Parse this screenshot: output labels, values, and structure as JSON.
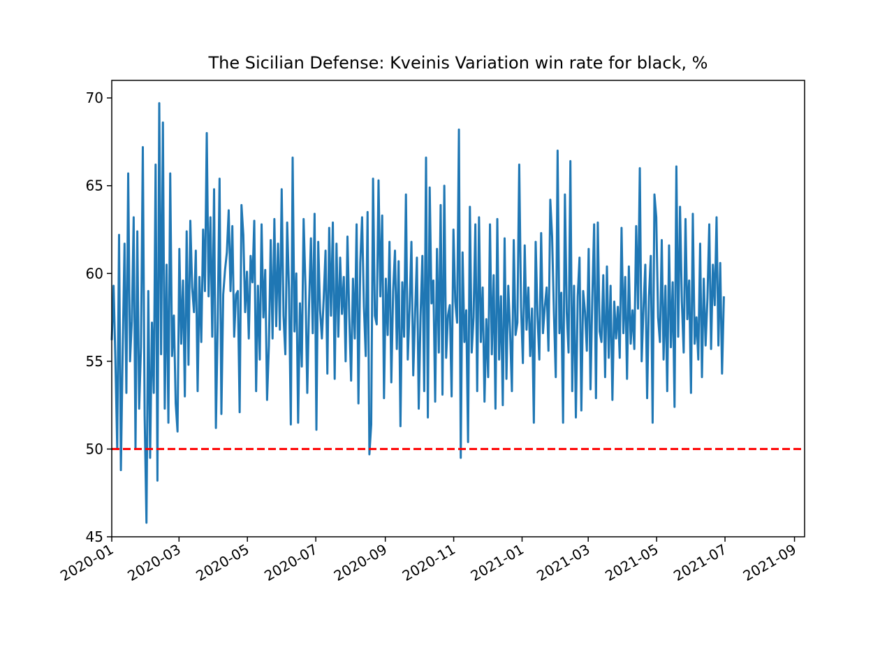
{
  "chart_data": {
    "type": "line",
    "title": "The Sicilian Defense: Kveinis Variation win rate for black, %",
    "xlabel": "",
    "ylabel": "",
    "x_start": "2020-01-01",
    "x_end": "2021-06-30",
    "xlim": [
      "2020-01-01",
      "2021-09-10"
    ],
    "ylim": [
      45,
      71
    ],
    "x_ticks": [
      {
        "date": "2020-01-01",
        "label": "2020-01"
      },
      {
        "date": "2020-03-01",
        "label": "2020-03"
      },
      {
        "date": "2020-05-01",
        "label": "2020-05"
      },
      {
        "date": "2020-07-01",
        "label": "2020-07"
      },
      {
        "date": "2020-09-01",
        "label": "2020-09"
      },
      {
        "date": "2020-11-01",
        "label": "2020-11"
      },
      {
        "date": "2021-01-01",
        "label": "2021-01"
      },
      {
        "date": "2021-03-01",
        "label": "2021-03"
      },
      {
        "date": "2021-05-01",
        "label": "2021-05"
      },
      {
        "date": "2021-07-01",
        "label": "2021-07"
      },
      {
        "date": "2021-09-01",
        "label": "2021-09"
      }
    ],
    "y_ticks": [
      {
        "value": 45,
        "label": "45"
      },
      {
        "value": 50,
        "label": "50"
      },
      {
        "value": 55,
        "label": "55"
      },
      {
        "value": 60,
        "label": "60"
      },
      {
        "value": 65,
        "label": "65"
      },
      {
        "value": 70,
        "label": "70"
      }
    ],
    "series": [
      {
        "name": "win rate",
        "color": "#1f77b4",
        "values": [
          56.2,
          59.3,
          55.1,
          50.0,
          62.2,
          48.8,
          55.7,
          61.7,
          53.2,
          65.7,
          55.0,
          57.3,
          63.2,
          50.0,
          62.4,
          52.3,
          55.8,
          67.2,
          51.9,
          45.8,
          59.0,
          49.5,
          57.2,
          53.2,
          66.2,
          48.2,
          69.7,
          55.4,
          68.6,
          52.3,
          60.5,
          51.5,
          65.7,
          55.3,
          57.6,
          52.6,
          51.0,
          61.4,
          56.0,
          59.6,
          53.0,
          62.4,
          54.8,
          63.0,
          59.2,
          57.8,
          61.3,
          53.3,
          59.8,
          56.1,
          62.5,
          59.0,
          68.0,
          58.7,
          63.2,
          56.4,
          64.8,
          51.2,
          57.3,
          65.4,
          52.0,
          58.8,
          60.2,
          61.2,
          63.6,
          59.0,
          62.7,
          56.4,
          58.8,
          59.0,
          52.1,
          63.9,
          62.2,
          57.8,
          60.1,
          56.3,
          61.0,
          59.5,
          63.0,
          53.3,
          59.3,
          55.1,
          62.8,
          57.5,
          60.2,
          52.8,
          55.9,
          61.9,
          56.3,
          63.1,
          57.0,
          61.7,
          56.8,
          64.8,
          57.6,
          55.4,
          62.9,
          59.1,
          51.4,
          66.6,
          56.7,
          60.0,
          51.5,
          58.3,
          54.7,
          63.1,
          59.3,
          53.2,
          58.3,
          62.0,
          56.6,
          63.4,
          51.1,
          61.8,
          57.9,
          56.3,
          58.6,
          61.3,
          54.3,
          62.6,
          57.6,
          62.9,
          54.0,
          61.7,
          56.4,
          60.9,
          57.7,
          59.8,
          55.0,
          62.1,
          57.5,
          53.9,
          59.7,
          56.3,
          62.8,
          52.6,
          60.6,
          63.2,
          58.1,
          55.3,
          63.5,
          49.7,
          51.4,
          65.4,
          57.6,
          57.1,
          65.3,
          58.7,
          63.3,
          52.9,
          59.7,
          56.5,
          61.8,
          53.8,
          59.0,
          61.3,
          55.7,
          60.7,
          51.3,
          59.5,
          56.4,
          64.5,
          55.1,
          58.0,
          61.8,
          54.2,
          57.7,
          60.9,
          52.3,
          57.6,
          61.0,
          53.3,
          66.6,
          51.8,
          64.9,
          58.3,
          59.6,
          52.7,
          61.4,
          55.5,
          63.9,
          53.1,
          65.0,
          55.2,
          57.6,
          58.2,
          53.0,
          62.5,
          58.4,
          57.2,
          68.2,
          49.5,
          61.2,
          56.1,
          57.9,
          50.4,
          63.8,
          55.5,
          57.5,
          62.8,
          53.3,
          63.2,
          56.1,
          59.2,
          52.7,
          57.4,
          54.1,
          62.8,
          55.4,
          59.9,
          52.3,
          63.1,
          55.1,
          58.7,
          52.5,
          62.0,
          54.0,
          59.3,
          56.7,
          53.3,
          61.9,
          56.5,
          57.2,
          66.2,
          58.1,
          54.9,
          61.6,
          56.8,
          59.2,
          55.3,
          58.0,
          51.5,
          61.8,
          57.6,
          55.1,
          62.3,
          56.6,
          58.1,
          59.2,
          55.6,
          64.2,
          62.1,
          57.7,
          54.1,
          67.0,
          56.6,
          58.9,
          51.5,
          64.5,
          57.8,
          55.5,
          66.4,
          53.3,
          59.3,
          51.8,
          58.7,
          60.9,
          52.2,
          59.0,
          57.8,
          55.6,
          61.4,
          53.4,
          58.6,
          62.8,
          52.9,
          62.9,
          56.7,
          56.1,
          59.9,
          54.1,
          60.4,
          55.2,
          59.3,
          52.8,
          58.4,
          56.3,
          58.1,
          55.2,
          62.6,
          56.6,
          59.8,
          54.0,
          60.4,
          56.0,
          57.9,
          55.7,
          62.7,
          58.0,
          66.0,
          55.0,
          58.0,
          60.5,
          52.9,
          58.7,
          61.0,
          51.5,
          64.5,
          63.2,
          57.5,
          56.1,
          61.9,
          55.1,
          59.3,
          53.3,
          61.6,
          55.8,
          59.5,
          52.4,
          66.1,
          56.4,
          63.8,
          58.4,
          55.5,
          63.1,
          57.4,
          59.6,
          53.2,
          63.4,
          56.0,
          57.5,
          55.1,
          61.7,
          54.1,
          59.7,
          55.9,
          58.6,
          62.8,
          55.7,
          60.5,
          58.2,
          63.2,
          55.9,
          60.6,
          54.3,
          58.7
        ]
      }
    ],
    "reference_line": {
      "value": 50,
      "color": "#ff0000",
      "style": "dashed"
    }
  }
}
